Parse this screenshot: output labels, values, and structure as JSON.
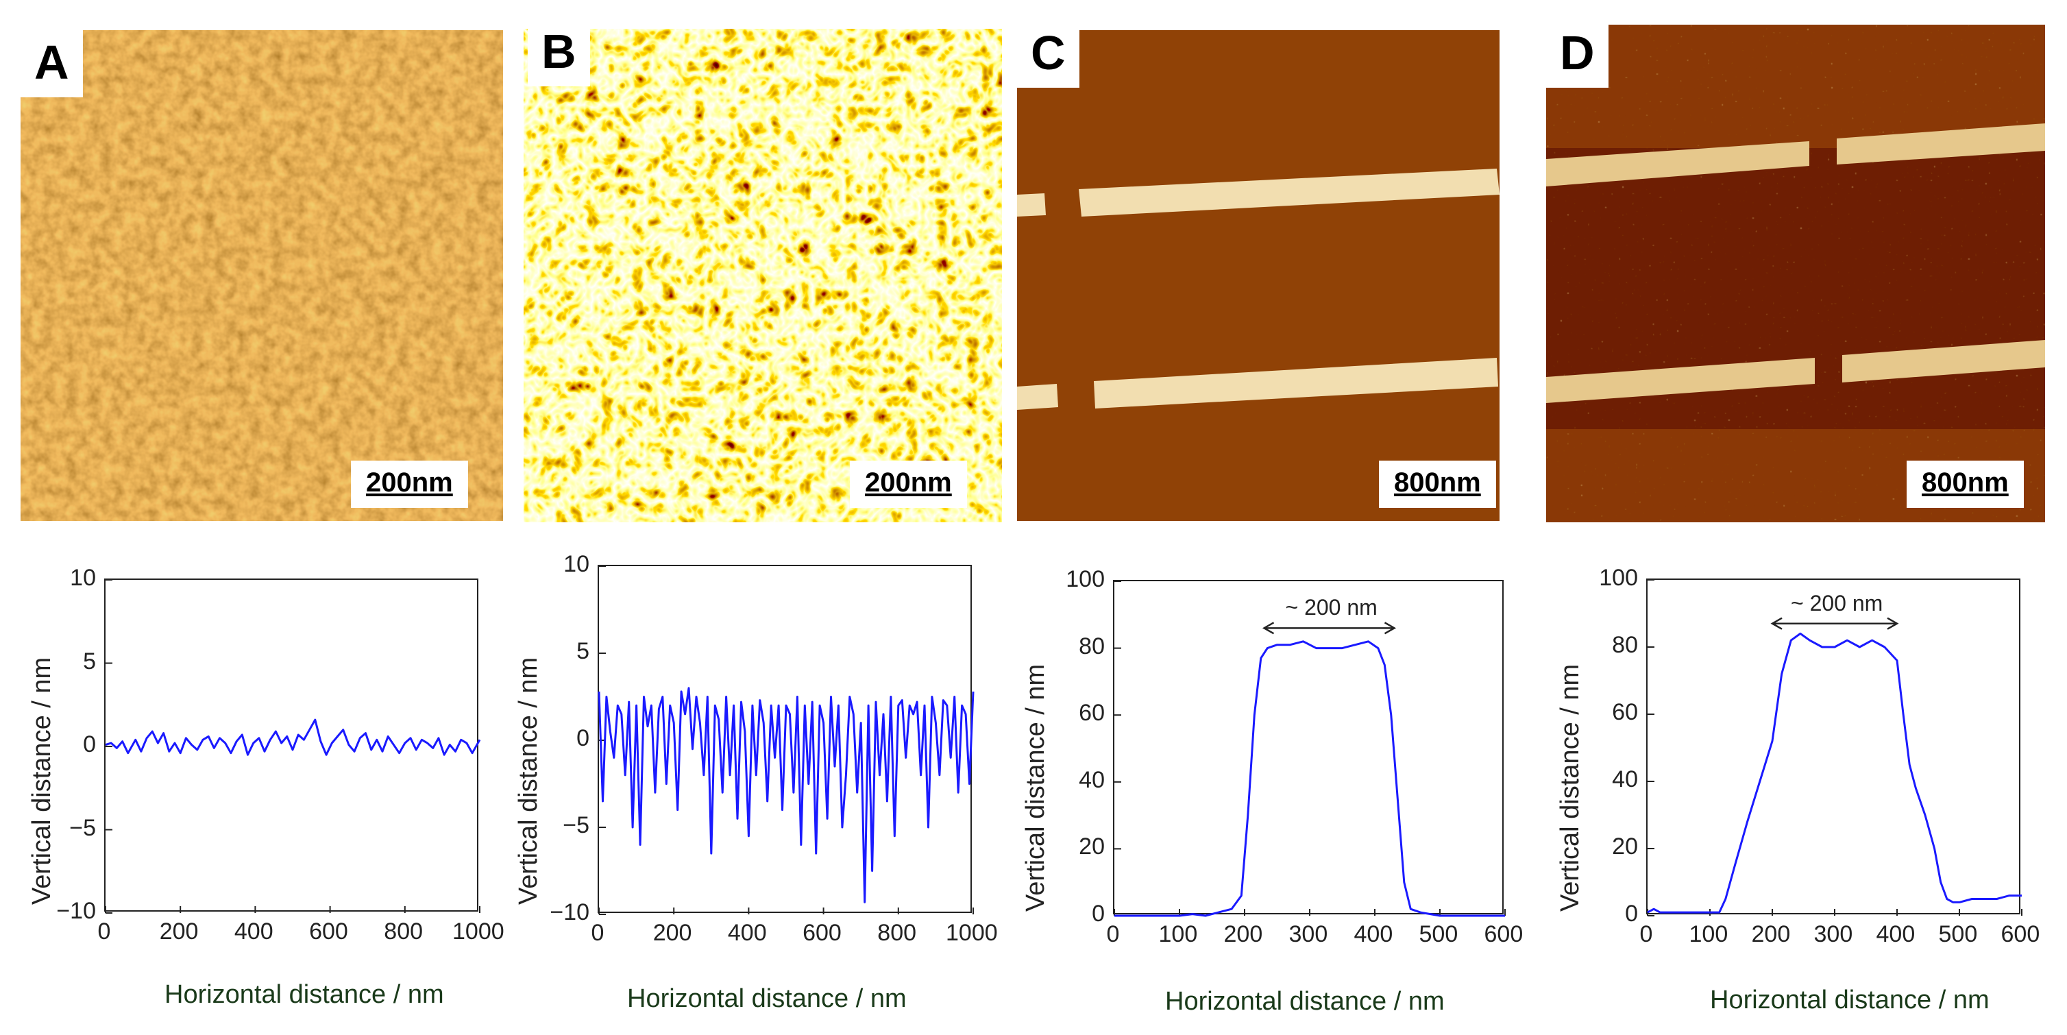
{
  "panels": [
    {
      "letter": "A",
      "scale_bar": "200nm",
      "image": "afm-rough-granular-surface"
    },
    {
      "letter": "B",
      "scale_bar": "200nm",
      "image": "afm-cracked-network-surface"
    },
    {
      "letter": "C",
      "scale_bar": "800nm",
      "image": "afm-nanobelt-electrodes"
    },
    {
      "letter": "D",
      "scale_bar": "800nm",
      "image": "afm-nanobelt-electrodes-with-debris"
    }
  ],
  "chart_data": [
    {
      "type": "line",
      "xlabel": "Horizontal distance / nm",
      "ylabel": "Vertical distance / nm",
      "xlim": [
        0,
        1000
      ],
      "ylim": [
        -10,
        10
      ],
      "xticks": [
        "0",
        "200",
        "400",
        "600",
        "800",
        "1000"
      ],
      "yticks": [
        "10",
        "5",
        "0",
        "−5",
        "−10"
      ],
      "series": [
        {
          "name": "profile",
          "color": "#1a1aff",
          "x": [
            0,
            15,
            30,
            45,
            60,
            80,
            95,
            110,
            125,
            140,
            155,
            170,
            185,
            200,
            215,
            230,
            245,
            260,
            275,
            290,
            305,
            320,
            335,
            350,
            365,
            380,
            395,
            410,
            425,
            440,
            455,
            470,
            485,
            500,
            515,
            530,
            545,
            560,
            575,
            590,
            605,
            620,
            635,
            650,
            665,
            680,
            695,
            710,
            725,
            740,
            755,
            770,
            785,
            800,
            815,
            830,
            845,
            860,
            875,
            890,
            905,
            920,
            935,
            950,
            965,
            980,
            1000
          ],
          "y": [
            0.1,
            0.2,
            -0.1,
            0.3,
            -0.4,
            0.4,
            -0.3,
            0.5,
            0.9,
            0.2,
            0.8,
            -0.3,
            0.2,
            -0.4,
            0.5,
            0.1,
            -0.2,
            0.4,
            0.6,
            -0.1,
            0.5,
            0.2,
            -0.4,
            0.3,
            0.7,
            -0.5,
            0.2,
            0.5,
            -0.3,
            0.4,
            0.9,
            0.2,
            0.6,
            -0.2,
            0.7,
            0.4,
            1.0,
            1.6,
            0.3,
            -0.5,
            0.2,
            0.6,
            1.0,
            0.1,
            -0.3,
            0.5,
            0.8,
            -0.2,
            0.4,
            -0.3,
            0.6,
            0.1,
            -0.4,
            0.2,
            0.5,
            -0.2,
            0.4,
            0.2,
            -0.1,
            0.5,
            -0.5,
            0.1,
            -0.3,
            0.4,
            0.2,
            -0.4,
            0.4
          ]
        }
      ]
    },
    {
      "type": "line",
      "xlabel": "Horizontal distance / nm",
      "ylabel": "Vertical distance / nm",
      "xlim": [
        0,
        1000
      ],
      "ylim": [
        -10,
        10
      ],
      "xticks": [
        "0",
        "200",
        "400",
        "600",
        "800",
        "1000"
      ],
      "yticks": [
        "10",
        "5",
        "0",
        "−5",
        "−10"
      ],
      "series": [
        {
          "name": "profile",
          "color": "#1a1aff",
          "x": [
            0,
            10,
            20,
            30,
            40,
            50,
            60,
            70,
            80,
            90,
            100,
            110,
            120,
            130,
            140,
            150,
            160,
            170,
            180,
            190,
            200,
            210,
            220,
            230,
            240,
            250,
            260,
            270,
            280,
            290,
            300,
            310,
            320,
            330,
            340,
            350,
            360,
            370,
            380,
            390,
            400,
            410,
            420,
            430,
            440,
            450,
            460,
            470,
            480,
            490,
            500,
            510,
            520,
            530,
            540,
            550,
            560,
            570,
            580,
            590,
            600,
            610,
            620,
            630,
            640,
            650,
            660,
            670,
            680,
            690,
            700,
            710,
            720,
            730,
            740,
            750,
            760,
            770,
            780,
            790,
            800,
            810,
            820,
            830,
            840,
            850,
            860,
            870,
            880,
            890,
            900,
            910,
            920,
            930,
            940,
            950,
            960,
            970,
            980,
            990,
            1000
          ],
          "y": [
            2.8,
            -3.5,
            2.5,
            0.5,
            -1.0,
            2.0,
            1.5,
            -2.0,
            2.2,
            -5.0,
            2.0,
            -6.0,
            2.5,
            0.8,
            2.0,
            -3.0,
            1.8,
            2.5,
            -2.5,
            2.0,
            1.0,
            -4.0,
            2.8,
            1.5,
            3.0,
            -0.5,
            2.5,
            1.0,
            -2.0,
            2.5,
            -6.5,
            2.0,
            1.2,
            -3.0,
            2.5,
            -2.0,
            2.0,
            -4.5,
            2.2,
            0.5,
            -5.5,
            2.0,
            -2.0,
            2.3,
            1.0,
            -3.5,
            2.0,
            -1.0,
            2.0,
            -4.0,
            2.0,
            1.5,
            -3.0,
            2.5,
            -6.0,
            2.0,
            -2.5,
            2.2,
            -6.5,
            2.0,
            1.0,
            -4.5,
            2.5,
            -1.5,
            2.0,
            -5.0,
            -2.0,
            2.5,
            1.5,
            -3.0,
            1.0,
            -9.3,
            2.0,
            -7.5,
            2.2,
            -2.0,
            1.5,
            -3.5,
            2.5,
            -5.5,
            2.0,
            2.3,
            -1.0,
            2.0,
            1.5,
            2.2,
            -2.0,
            2.0,
            -5.0,
            2.5,
            1.0,
            -2.0,
            2.3,
            2.0,
            -1.0,
            2.5,
            -3.0,
            2.0,
            1.5,
            -2.5,
            2.8
          ]
        }
      ]
    },
    {
      "type": "line",
      "xlabel": "Horizontal distance / nm",
      "ylabel": "Vertical distance / nm",
      "xlim": [
        0,
        600
      ],
      "ylim": [
        0,
        100
      ],
      "xticks": [
        "0",
        "100",
        "200",
        "300",
        "400",
        "500",
        "600"
      ],
      "yticks": [
        "100",
        "80",
        "60",
        "40",
        "20",
        "0"
      ],
      "annotation": "~ 200 nm",
      "annotation_span": [
        230,
        430
      ],
      "annotation_y": 86,
      "series": [
        {
          "name": "profile",
          "color": "#1a1aff",
          "x": [
            0,
            50,
            100,
            120,
            140,
            160,
            180,
            195,
            205,
            215,
            225,
            235,
            250,
            270,
            290,
            310,
            330,
            350,
            370,
            390,
            405,
            415,
            425,
            435,
            445,
            455,
            470,
            500,
            550,
            600
          ],
          "y": [
            0,
            0,
            0,
            0.5,
            0,
            1,
            2,
            6,
            30,
            60,
            77,
            80,
            81,
            81,
            82,
            80,
            80,
            80,
            81,
            82,
            80,
            75,
            60,
            35,
            10,
            2,
            1,
            0,
            0,
            0
          ]
        }
      ]
    },
    {
      "type": "line",
      "xlabel": "Horizontal distance / nm",
      "ylabel": "Vertical distance / nm",
      "xlim": [
        0,
        600
      ],
      "ylim": [
        0,
        100
      ],
      "xticks": [
        "0",
        "100",
        "200",
        "300",
        "400",
        "500",
        "600"
      ],
      "yticks": [
        "100",
        "80",
        "60",
        "40",
        "20",
        "0"
      ],
      "annotation": "~ 200 nm",
      "annotation_span": [
        200,
        400
      ],
      "annotation_y": 87,
      "series": [
        {
          "name": "profile",
          "color": "#1a1aff",
          "x": [
            0,
            10,
            20,
            40,
            60,
            80,
            100,
            115,
            125,
            140,
            160,
            180,
            200,
            215,
            230,
            245,
            260,
            280,
            300,
            320,
            340,
            360,
            380,
            400,
            410,
            420,
            430,
            445,
            460,
            470,
            480,
            490,
            500,
            520,
            540,
            560,
            580,
            600
          ],
          "y": [
            1,
            2,
            1,
            1,
            1,
            1,
            1,
            1,
            5,
            15,
            28,
            40,
            52,
            72,
            82,
            84,
            82,
            80,
            80,
            82,
            80,
            82,
            80,
            76,
            60,
            45,
            38,
            30,
            20,
            10,
            5,
            4,
            4,
            5,
            5,
            5,
            6,
            6
          ]
        }
      ]
    }
  ]
}
